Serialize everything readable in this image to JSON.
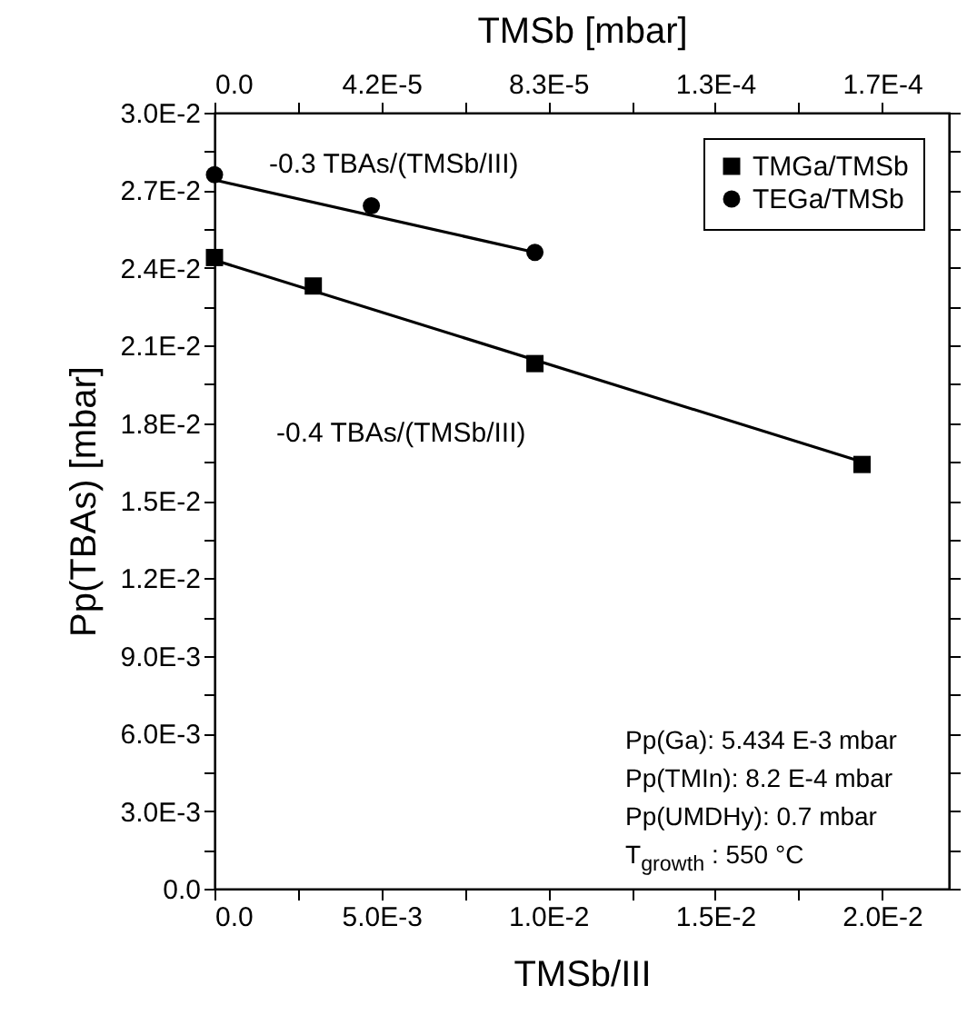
{
  "chart_data": {
    "type": "scatter",
    "xlabel": "TMSb/III",
    "ylabel": "Pp(TBAs) [mbar]",
    "x2label": "TMSb [mbar]",
    "xlim": [
      0,
      0.022
    ],
    "ylim": [
      0,
      0.03
    ],
    "x2lim": [
      0,
      0.00018333
    ],
    "xticks": [
      {
        "value": 0,
        "label": "0.0"
      },
      {
        "value": 0.0025,
        "label": null
      },
      {
        "value": 0.005,
        "label": "5.0E-3"
      },
      {
        "value": 0.0075,
        "label": null
      },
      {
        "value": 0.01,
        "label": "1.0E-2"
      },
      {
        "value": 0.0125,
        "label": null
      },
      {
        "value": 0.015,
        "label": "1.5E-2"
      },
      {
        "value": 0.0175,
        "label": null
      },
      {
        "value": 0.02,
        "label": "2.0E-2"
      }
    ],
    "yticks": [
      {
        "value": 0,
        "label": "0.0"
      },
      {
        "value": 0.0015,
        "label": null
      },
      {
        "value": 0.003,
        "label": "3.0E-3"
      },
      {
        "value": 0.0045,
        "label": null
      },
      {
        "value": 0.006,
        "label": "6.0E-3"
      },
      {
        "value": 0.0075,
        "label": null
      },
      {
        "value": 0.009,
        "label": "9.0E-3"
      },
      {
        "value": 0.0105,
        "label": null
      },
      {
        "value": 0.012,
        "label": "1.2E-2"
      },
      {
        "value": 0.0135,
        "label": null
      },
      {
        "value": 0.015,
        "label": "1.5E-2"
      },
      {
        "value": 0.0165,
        "label": null
      },
      {
        "value": 0.018,
        "label": "1.8E-2"
      },
      {
        "value": 0.0195,
        "label": null
      },
      {
        "value": 0.021,
        "label": "2.1E-2"
      },
      {
        "value": 0.0225,
        "label": null
      },
      {
        "value": 0.024,
        "label": "2.4E-2"
      },
      {
        "value": 0.0255,
        "label": null
      },
      {
        "value": 0.027,
        "label": "2.7E-2"
      },
      {
        "value": 0.0285,
        "label": null
      },
      {
        "value": 0.03,
        "label": "3.0E-2"
      }
    ],
    "x2ticks": [
      {
        "value": 0,
        "label": "0.0"
      },
      {
        "value": 2.0833e-05,
        "label": null
      },
      {
        "value": 4.1667e-05,
        "label": "4.2E-5"
      },
      {
        "value": 6.25e-05,
        "label": null
      },
      {
        "value": 8.3333e-05,
        "label": "8.3E-5"
      },
      {
        "value": 0.00010417,
        "label": null
      },
      {
        "value": 0.000125,
        "label": "1.3E-4"
      },
      {
        "value": 0.00014583,
        "label": null
      },
      {
        "value": 0.00016667,
        "label": "1.7E-4"
      }
    ],
    "series": [
      {
        "name": "TMGa/TMSb",
        "marker": "square",
        "color": "#000000",
        "x": [
          0,
          0.00296,
          0.0096,
          0.0194
        ],
        "values": [
          0.0244,
          0.0233,
          0.0203,
          0.0164
        ]
      },
      {
        "name": "TEGa/TMSb",
        "marker": "circle",
        "color": "#000000",
        "x": [
          0,
          0.0047,
          0.0096
        ],
        "values": [
          0.0276,
          0.0264,
          0.0246
        ]
      },
      {
        "type": "line",
        "color": "#000000",
        "x": [
          0,
          0.0096
        ],
        "values": [
          0.0274,
          0.0246
        ]
      },
      {
        "type": "line",
        "color": "#000000",
        "x": [
          0,
          0.0194
        ],
        "values": [
          0.0243,
          0.0165
        ]
      }
    ],
    "legend": "top right",
    "grid": false,
    "annotations": [
      "-0.3 TBAs/(TMSb/III)",
      "-0.4 TBAs/(TMSb/III)",
      "Pp(Ga): 5.434 E-3 mbar",
      "Pp(TMIn): 8.2 E-4 mbar",
      "Pp(UMDHy): 0.7 mbar",
      "T$_{growth}$ : 550 °C"
    ]
  }
}
